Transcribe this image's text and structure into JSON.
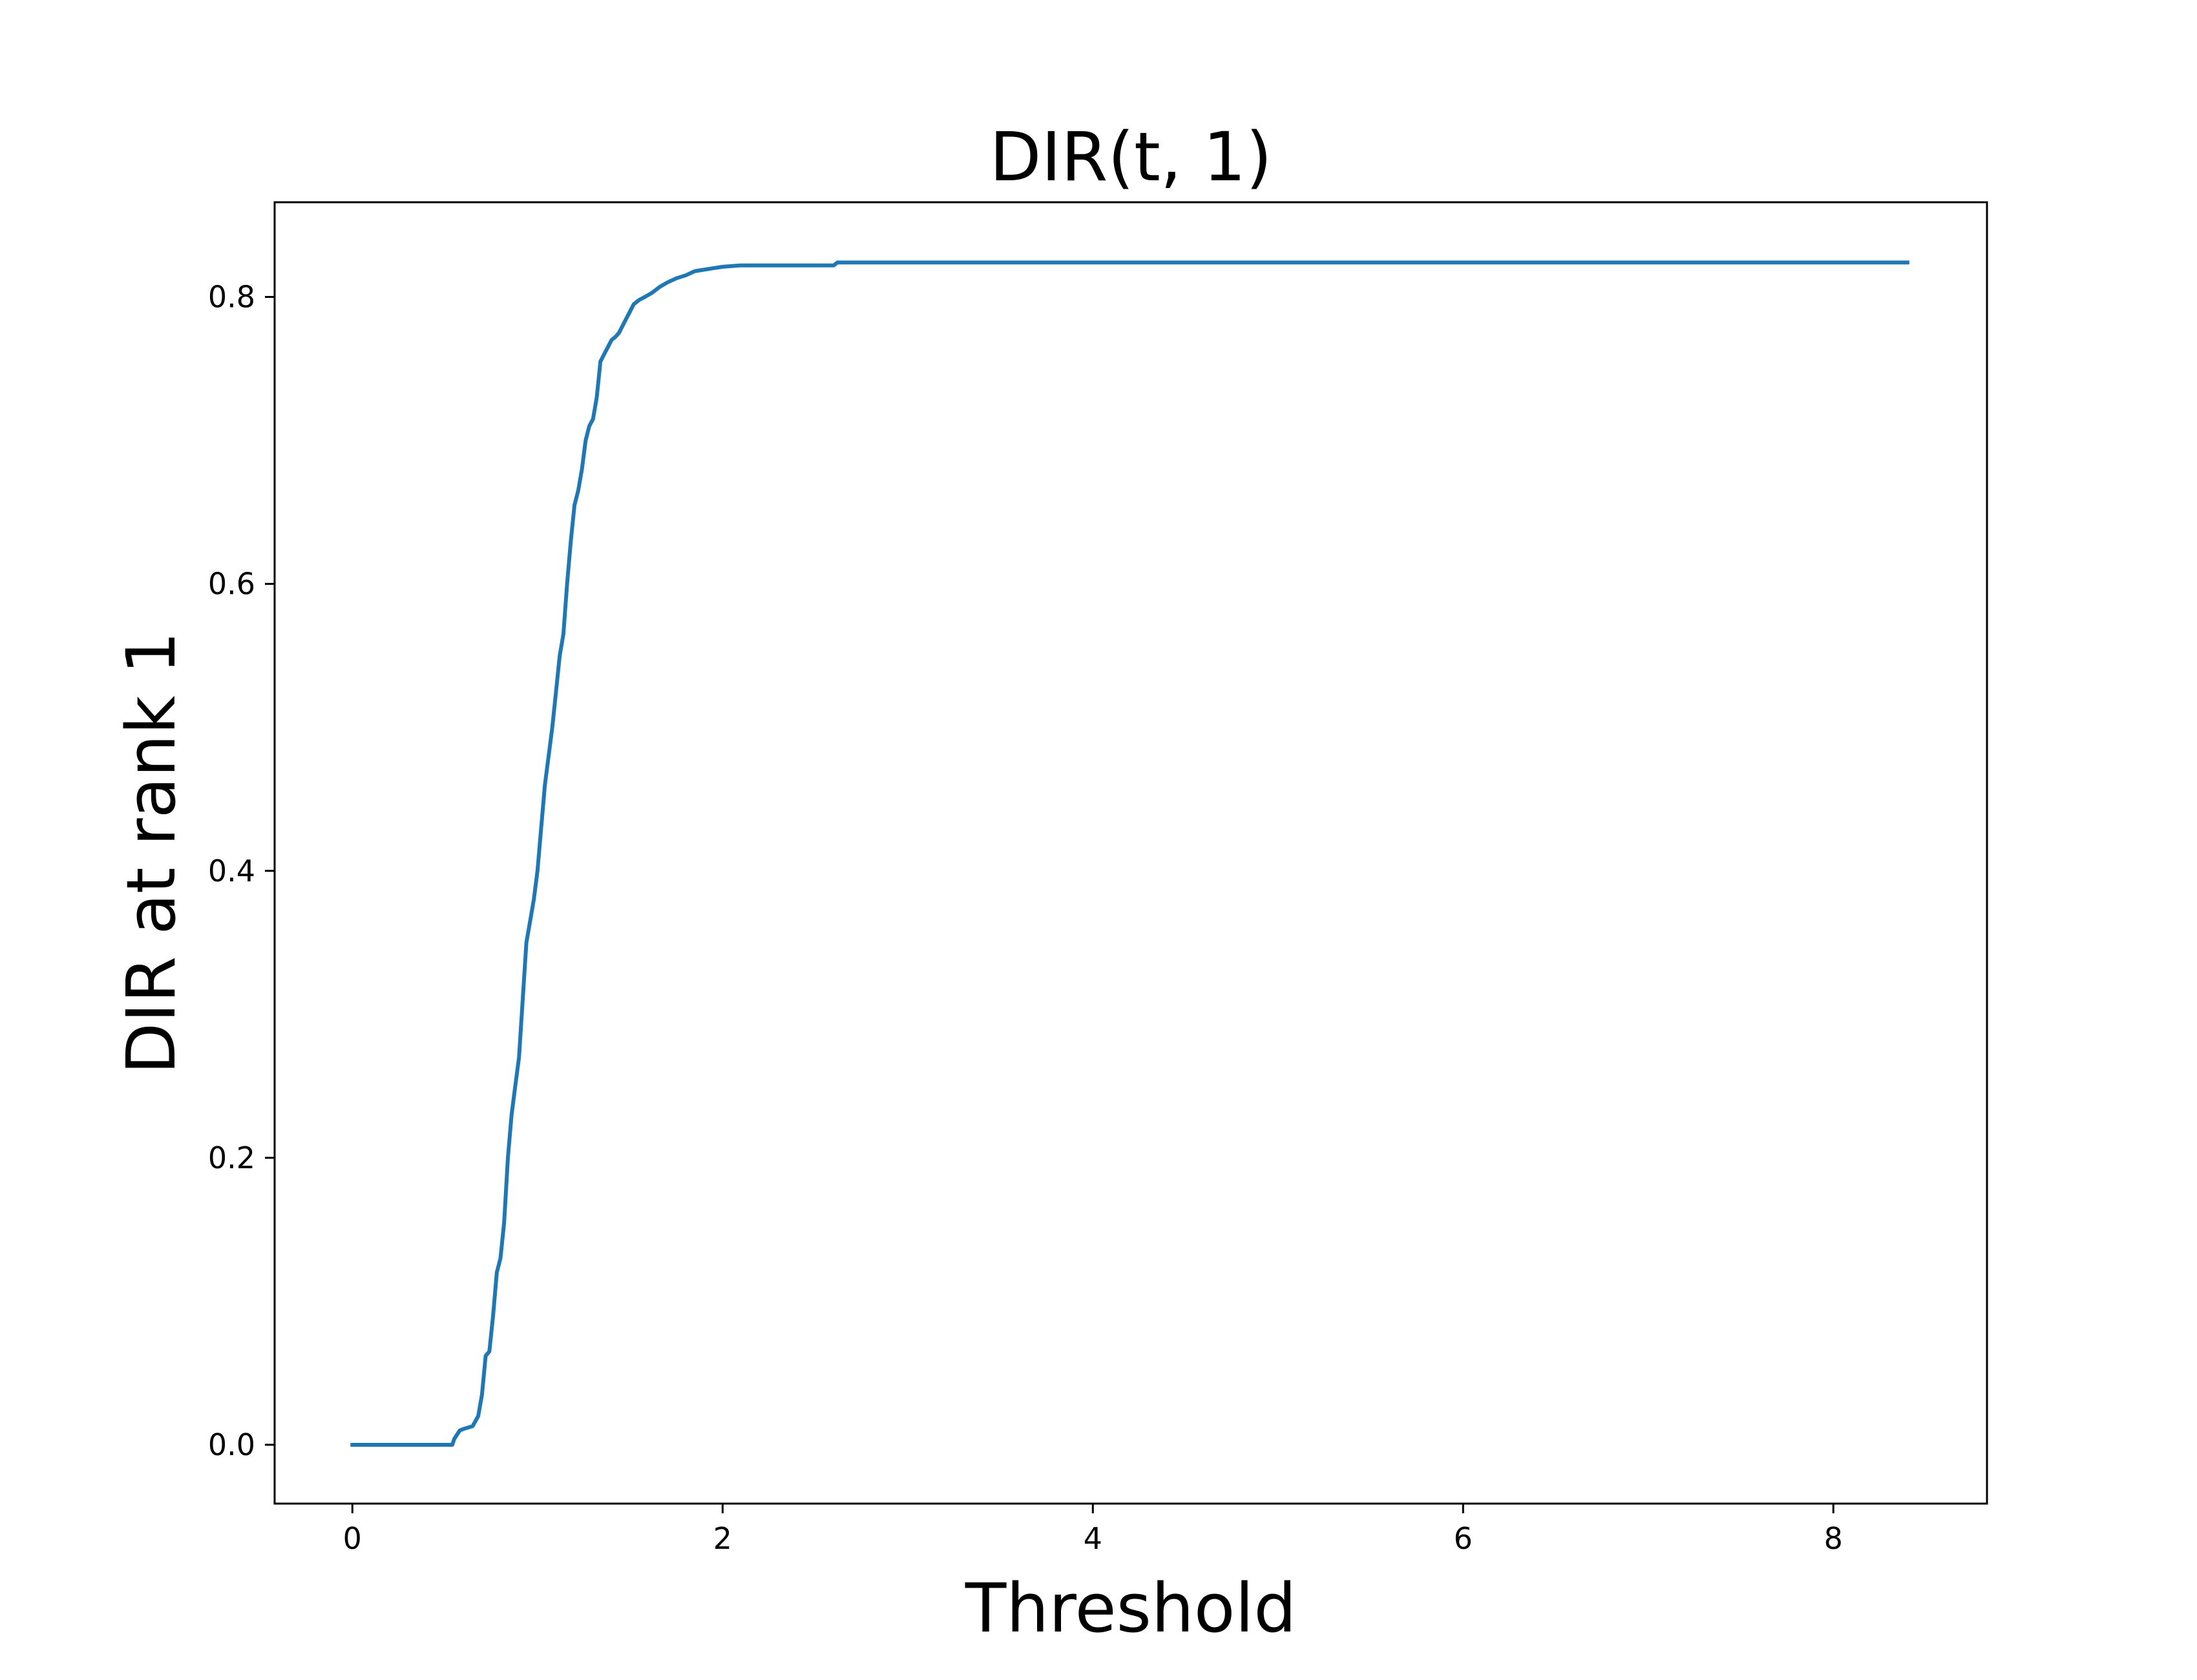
{
  "chart_data": {
    "type": "line",
    "title": "DIR(t, 1)",
    "xlabel": "Threshold",
    "ylabel": "DIR at rank 1",
    "xlim": [
      -0.42,
      8.83
    ],
    "ylim": [
      -0.041,
      0.866
    ],
    "xticks": [
      0,
      2,
      4,
      6,
      8
    ],
    "xtick_labels": [
      "0",
      "2",
      "4",
      "6",
      "8"
    ],
    "yticks": [
      0.0,
      0.2,
      0.4,
      0.6,
      0.8
    ],
    "ytick_labels": [
      "0.0",
      "0.2",
      "0.4",
      "0.6",
      "0.8"
    ],
    "grid": false,
    "series": [
      {
        "color": "#1f77b4",
        "x": [
          0.0,
          0.3,
          0.54,
          0.55,
          0.58,
          0.6,
          0.65,
          0.68,
          0.7,
          0.72,
          0.74,
          0.76,
          0.78,
          0.8,
          0.82,
          0.84,
          0.86,
          0.88,
          0.9,
          0.92,
          0.94,
          0.96,
          0.98,
          1.0,
          1.02,
          1.04,
          1.06,
          1.08,
          1.1,
          1.12,
          1.14,
          1.16,
          1.18,
          1.2,
          1.22,
          1.24,
          1.26,
          1.28,
          1.3,
          1.32,
          1.34,
          1.36,
          1.38,
          1.4,
          1.42,
          1.44,
          1.46,
          1.48,
          1.5,
          1.52,
          1.55,
          1.58,
          1.62,
          1.66,
          1.7,
          1.75,
          1.8,
          1.85,
          1.9,
          1.95,
          2.0,
          2.05,
          2.1,
          2.2,
          2.4,
          2.6,
          2.62,
          3.0,
          4.0,
          5.0,
          6.0,
          7.0,
          8.0,
          8.4
        ],
        "y": [
          0.0,
          0.0,
          0.0,
          0.004,
          0.01,
          0.011,
          0.013,
          0.02,
          0.035,
          0.062,
          0.065,
          0.09,
          0.12,
          0.13,
          0.155,
          0.2,
          0.23,
          0.25,
          0.27,
          0.31,
          0.35,
          0.365,
          0.38,
          0.4,
          0.43,
          0.46,
          0.48,
          0.5,
          0.525,
          0.55,
          0.565,
          0.6,
          0.63,
          0.655,
          0.665,
          0.68,
          0.7,
          0.71,
          0.715,
          0.73,
          0.755,
          0.76,
          0.765,
          0.77,
          0.772,
          0.775,
          0.78,
          0.785,
          0.79,
          0.795,
          0.798,
          0.8,
          0.803,
          0.807,
          0.81,
          0.813,
          0.815,
          0.818,
          0.819,
          0.82,
          0.821,
          0.8215,
          0.822,
          0.822,
          0.822,
          0.822,
          0.824,
          0.824,
          0.824,
          0.824,
          0.824,
          0.824,
          0.824,
          0.824
        ]
      }
    ]
  }
}
